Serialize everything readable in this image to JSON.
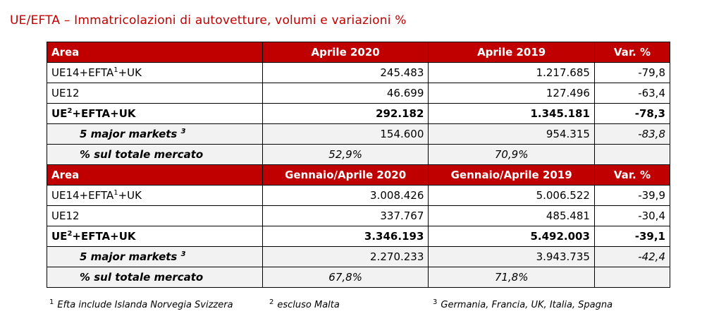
{
  "title": "UE/EFTA – Immatricolazioni di autovetture, volumi e variazioni %",
  "sections": [
    {
      "header": {
        "area": "Area",
        "col_a": "Aprile 2020",
        "col_b": "Aprile 2019",
        "var": "Var. %"
      },
      "rows": [
        {
          "pre": "UE14+EFTA",
          "sup": "1",
          "post": "+UK",
          "a": "245.483",
          "b": "1.217.685",
          "v": "-79,8"
        },
        {
          "label": "UE12",
          "a": "46.699",
          "b": "127.496",
          "v": "-63,4"
        },
        {
          "pre": "UE",
          "sup": "2",
          "post": "+EFTA+UK",
          "a": "292.182",
          "b": "1.345.181",
          "v": "-78,3"
        },
        {
          "label": "5 major markets",
          "sup": "3",
          "a": "154.600",
          "b": "954.315",
          "v": "-83,8"
        },
        {
          "label": "% sul totale mercato",
          "a": "52,9%",
          "b": "70,9%",
          "v": ""
        }
      ]
    },
    {
      "header": {
        "area": "Area",
        "col_a": "Gennaio/Aprile 2020",
        "col_b": "Gennaio/Aprile 2019",
        "var": "Var. %"
      },
      "rows": [
        {
          "pre": "UE14+EFTA",
          "sup": "1",
          "post": "+UK",
          "a": "3.008.426",
          "b": "5.006.522",
          "v": "-39,9"
        },
        {
          "label": "UE12",
          "a": "337.767",
          "b": "485.481",
          "v": "-30,4"
        },
        {
          "pre": "UE",
          "sup": "2",
          "post": "+EFTA+UK",
          "a": "3.346.193",
          "b": "5.492.003",
          "v": "-39,1"
        },
        {
          "label": "5 major markets",
          "sup": "3",
          "a": "2.270.233",
          "b": "3.943.735",
          "v": "-42,4"
        },
        {
          "label": "% sul totale mercato",
          "a": "67,8%",
          "b": "71,8%",
          "v": ""
        }
      ]
    }
  ],
  "footnotes": [
    {
      "num": "1",
      "text": "Efta include Islanda Norvegia Svizzera"
    },
    {
      "num": "2",
      "text": "escluso Malta"
    },
    {
      "num": "3",
      "text": "Germania, Francia, UK, Italia, Spagna"
    }
  ],
  "colors": {
    "header_bg": "#c00000",
    "title": "#c00000",
    "subtotal_bg": "#f2f2f2"
  }
}
